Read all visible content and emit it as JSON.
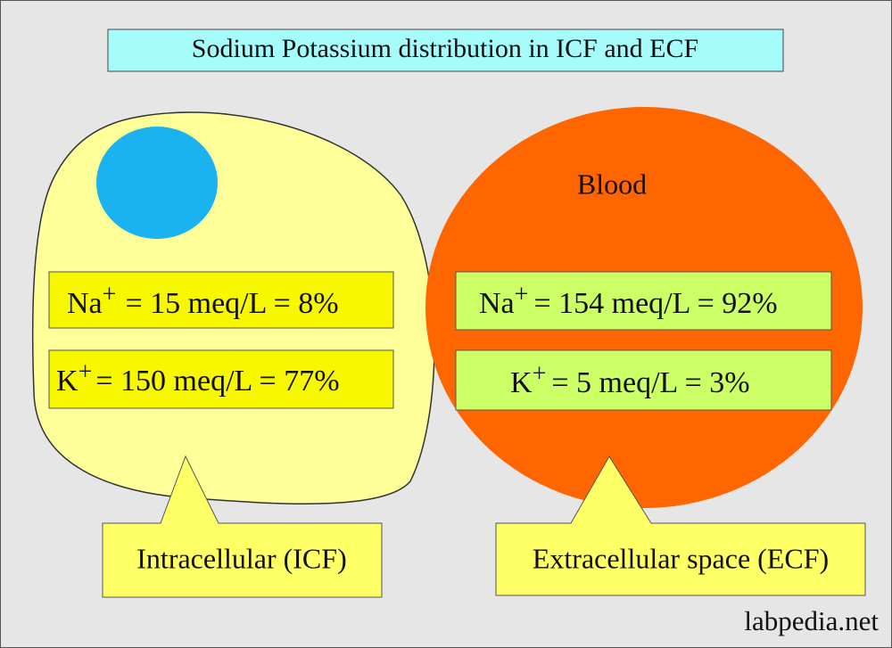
{
  "title": "Sodium Potassium distribution in ICF and ECF",
  "icf": {
    "sodium": {
      "ion": "Na",
      "charge": "+",
      "text": "= 15 meq/L = 8%"
    },
    "potassium": {
      "ion": "K",
      "charge": "+",
      "text": "= 150 meq/L = 77%"
    },
    "label": "Intracellular (ICF)"
  },
  "ecf": {
    "space": "Blood",
    "sodium": {
      "ion": "Na",
      "charge": "+",
      "text": "= 154 meq/L = 92%"
    },
    "potassium": {
      "ion": "K",
      "charge": "+",
      "text": "= 5 meq/L = 3%"
    },
    "label": "Extracellular space (ECF)"
  },
  "watermark": "labpedia.net"
}
